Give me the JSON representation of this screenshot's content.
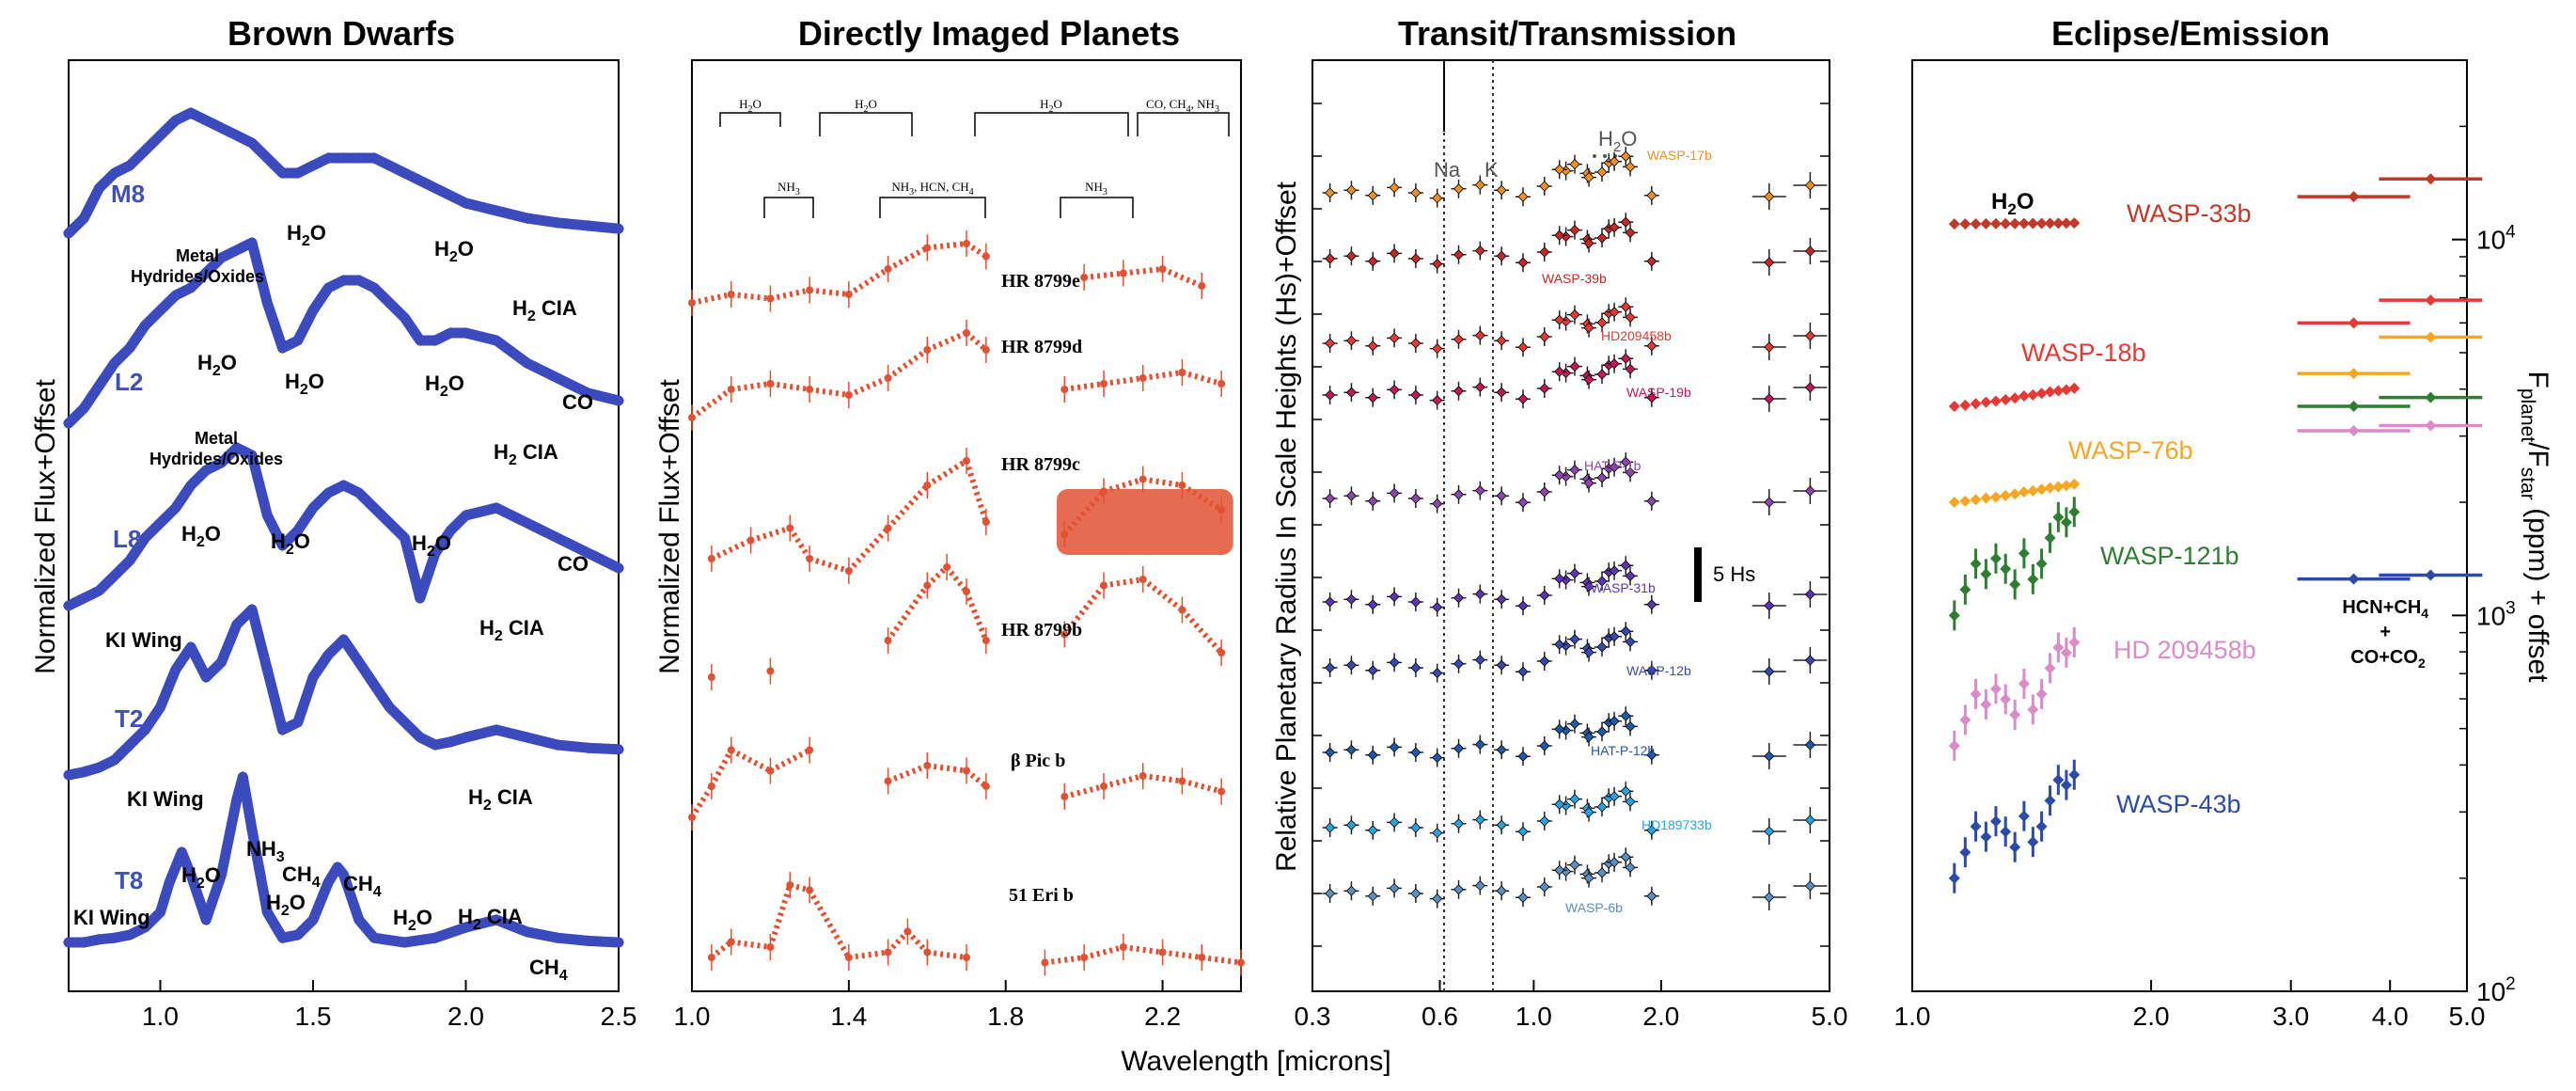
{
  "xlabel": "Wavelength [microns]",
  "chart_data": [
    {
      "type": "line",
      "title": "Brown Dwarfs",
      "xlabel": "",
      "ylabel": "Normalized Flux+Offset",
      "xlim": [
        0.7,
        2.5
      ],
      "xticks": [
        "1.0",
        "1.5",
        "2.0",
        "2.5"
      ],
      "color": "#3b4bbd",
      "series": [
        {
          "name": "M8",
          "offset": 4,
          "x": [
            0.7,
            0.75,
            0.8,
            0.85,
            0.9,
            0.95,
            1.0,
            1.05,
            1.1,
            1.15,
            1.2,
            1.25,
            1.3,
            1.35,
            1.4,
            1.45,
            1.5,
            1.55,
            1.6,
            1.65,
            1.7,
            1.75,
            1.8,
            1.85,
            1.9,
            1.95,
            2.0,
            2.1,
            2.2,
            2.3,
            2.4,
            2.5
          ],
          "y": [
            0.45,
            0.55,
            0.75,
            0.85,
            0.9,
            1.0,
            1.1,
            1.2,
            1.25,
            1.2,
            1.15,
            1.1,
            1.05,
            0.95,
            0.85,
            0.85,
            0.9,
            0.95,
            0.95,
            0.95,
            0.95,
            0.9,
            0.85,
            0.8,
            0.75,
            0.7,
            0.65,
            0.6,
            0.55,
            0.52,
            0.5,
            0.48
          ]
        },
        {
          "name": "L2",
          "offset": 3,
          "x": [
            0.7,
            0.75,
            0.8,
            0.85,
            0.9,
            0.95,
            1.0,
            1.05,
            1.1,
            1.15,
            1.2,
            1.25,
            1.3,
            1.35,
            1.4,
            1.45,
            1.5,
            1.55,
            1.6,
            1.65,
            1.7,
            1.75,
            1.8,
            1.85,
            1.9,
            1.95,
            2.0,
            2.1,
            2.2,
            2.3,
            2.4,
            2.5
          ],
          "y": [
            0.2,
            0.3,
            0.45,
            0.6,
            0.7,
            0.85,
            0.95,
            1.05,
            1.1,
            1.2,
            1.3,
            1.35,
            1.4,
            1.0,
            0.7,
            0.75,
            0.95,
            1.1,
            1.15,
            1.15,
            1.1,
            1.0,
            0.9,
            0.75,
            0.75,
            0.8,
            0.8,
            0.75,
            0.6,
            0.5,
            0.4,
            0.35
          ]
        },
        {
          "name": "L8",
          "offset": 2,
          "x": [
            0.7,
            0.75,
            0.8,
            0.85,
            0.9,
            0.95,
            1.0,
            1.05,
            1.1,
            1.15,
            1.2,
            1.25,
            1.3,
            1.35,
            1.4,
            1.45,
            1.5,
            1.55,
            1.6,
            1.65,
            1.7,
            1.75,
            1.8,
            1.85,
            1.9,
            1.95,
            2.0,
            2.1,
            2.2,
            2.3,
            2.4,
            2.5
          ],
          "y": [
            0.1,
            0.15,
            0.2,
            0.3,
            0.4,
            0.55,
            0.65,
            0.75,
            0.9,
            1.0,
            1.05,
            1.15,
            1.1,
            0.7,
            0.5,
            0.6,
            0.75,
            0.85,
            0.9,
            0.85,
            0.75,
            0.65,
            0.55,
            0.15,
            0.45,
            0.6,
            0.7,
            0.75,
            0.65,
            0.55,
            0.45,
            0.35
          ]
        },
        {
          "name": "T2",
          "offset": 1,
          "x": [
            0.7,
            0.75,
            0.8,
            0.85,
            0.9,
            0.95,
            1.0,
            1.05,
            1.1,
            1.15,
            1.2,
            1.25,
            1.3,
            1.35,
            1.4,
            1.45,
            1.5,
            1.55,
            1.6,
            1.65,
            1.7,
            1.75,
            1.8,
            1.85,
            1.9,
            1.95,
            2.0,
            2.1,
            2.2,
            2.3,
            2.4,
            2.5
          ],
          "y": [
            0.1,
            0.12,
            0.15,
            0.2,
            0.3,
            0.4,
            0.55,
            0.8,
            0.95,
            0.75,
            0.85,
            1.1,
            1.2,
            0.8,
            0.4,
            0.45,
            0.75,
            0.9,
            1.0,
            0.85,
            0.7,
            0.55,
            0.45,
            0.35,
            0.3,
            0.32,
            0.35,
            0.4,
            0.35,
            0.3,
            0.28,
            0.27
          ]
        },
        {
          "name": "T8",
          "offset": 0,
          "x": [
            0.7,
            0.75,
            0.8,
            0.85,
            0.9,
            0.95,
            1.0,
            1.03,
            1.07,
            1.1,
            1.15,
            1.2,
            1.25,
            1.27,
            1.3,
            1.35,
            1.4,
            1.45,
            1.5,
            1.55,
            1.58,
            1.6,
            1.65,
            1.7,
            1.8,
            1.9,
            2.0,
            2.1,
            2.2,
            2.3,
            2.4,
            2.5
          ],
          "y": [
            0.05,
            0.05,
            0.07,
            0.08,
            0.1,
            0.15,
            0.25,
            0.45,
            0.65,
            0.5,
            0.2,
            0.5,
            1.0,
            1.15,
            0.8,
            0.25,
            0.08,
            0.1,
            0.2,
            0.45,
            0.55,
            0.5,
            0.2,
            0.08,
            0.05,
            0.08,
            0.15,
            0.2,
            0.12,
            0.08,
            0.06,
            0.05
          ]
        }
      ],
      "annotations": [
        "Metal Hydrides/Oxides",
        "H2O",
        "H2O",
        "H2 CIA",
        "H2O",
        "H2O",
        "H2O",
        "Metal Hydrides/Oxides",
        "CO",
        "H2 CIA",
        "H2O",
        "H2O",
        "H2O",
        "KI Wing",
        "CO",
        "H2 CIA",
        "KI Wing",
        "H2 CIA",
        "NH3",
        "H2O",
        "CH4",
        "H2O",
        "CH4",
        "H2O",
        "H2 CIA",
        "KI Wing",
        "CH4"
      ]
    },
    {
      "type": "scatter",
      "title": "Directly Imaged Planets",
      "ylabel": "Normalized Flux+Offset",
      "xlim": [
        1.0,
        2.4
      ],
      "xticks": [
        "1.0",
        "1.4",
        "1.8",
        "2.2"
      ],
      "color": "#e05233",
      "band_labels_top": [
        "H2O",
        "H2O",
        "H2O",
        "CO, CH4, NH3"
      ],
      "band_labels_bottom": [
        "NH3",
        "NH3, HCN, CH4",
        "NH3"
      ],
      "series": [
        {
          "name": "HR 8799e",
          "x": [
            1.0,
            1.1,
            1.2,
            1.3,
            1.4,
            1.5,
            1.6,
            1.7,
            1.75,
            2.0,
            2.1,
            2.2,
            2.3
          ],
          "y": [
            0.2,
            0.3,
            0.25,
            0.35,
            0.3,
            0.6,
            0.85,
            0.9,
            0.75,
            0.5,
            0.55,
            0.6,
            0.4
          ]
        },
        {
          "name": "HR 8799d",
          "x": [
            1.0,
            1.1,
            1.2,
            1.3,
            1.4,
            1.5,
            1.6,
            1.7,
            1.75,
            1.95,
            2.05,
            2.15,
            2.25,
            2.35
          ],
          "y": [
            0.3,
            0.55,
            0.6,
            0.55,
            0.5,
            0.65,
            0.9,
            1.05,
            0.9,
            0.55,
            0.6,
            0.65,
            0.7,
            0.6
          ]
        },
        {
          "name": "HR 8799c",
          "x": [
            1.05,
            1.15,
            1.25,
            1.3,
            1.4,
            1.5,
            1.6,
            1.7,
            1.75,
            1.95,
            2.05,
            2.15,
            2.25,
            2.35
          ],
          "y": [
            0.2,
            0.35,
            0.45,
            0.2,
            0.1,
            0.45,
            0.8,
            1.0,
            0.5,
            0.4,
            0.75,
            0.85,
            0.8,
            0.6
          ]
        },
        {
          "name": "HR 8799b",
          "x": [
            1.05,
            1.2,
            1.5,
            1.6,
            1.65,
            1.7,
            1.75,
            1.95,
            2.05,
            2.15,
            2.25,
            2.35
          ],
          "y": [
            0.0,
            0.05,
            0.3,
            0.75,
            0.9,
            0.7,
            0.3,
            0.35,
            0.75,
            0.8,
            0.55,
            0.2
          ]
        },
        {
          "name": "β Pic b",
          "x": [
            1.0,
            1.05,
            1.1,
            1.2,
            1.3,
            1.5,
            1.6,
            1.7,
            1.75,
            1.95,
            2.05,
            2.15,
            2.25,
            2.35
          ],
          "y": [
            0.1,
            0.4,
            0.75,
            0.55,
            0.75,
            0.45,
            0.6,
            0.55,
            0.4,
            0.3,
            0.4,
            0.5,
            0.45,
            0.35
          ]
        },
        {
          "name": "51 Eri b",
          "x": [
            1.05,
            1.1,
            1.2,
            1.25,
            1.3,
            1.4,
            1.5,
            1.55,
            1.6,
            1.7,
            1.9,
            2.0,
            2.1,
            2.2,
            2.3,
            2.4
          ],
          "y": [
            0.2,
            0.35,
            0.3,
            0.9,
            0.85,
            0.2,
            0.25,
            0.45,
            0.25,
            0.2,
            0.15,
            0.2,
            0.3,
            0.25,
            0.2,
            0.15
          ]
        }
      ]
    },
    {
      "type": "scatter",
      "title": "Transit/Transmission",
      "ylabel": "Relative Planetary Radius In Scale Heights (Hs)+Offset",
      "xscale": "log",
      "xlim": [
        0.3,
        5.0
      ],
      "xticks": [
        "0.3",
        "0.6",
        "1.0",
        "2.0",
        "5.0"
      ],
      "vlines": [
        "Na",
        "K"
      ],
      "molecule_label": "H2O",
      "scale_bar_label": "5 Hs",
      "series": [
        {
          "name": "WASP-17b",
          "color": "#f28f24"
        },
        {
          "name": "WASP-39b",
          "color": "#c62828"
        },
        {
          "name": "HD209458b",
          "color": "#e53935"
        },
        {
          "name": "WASP-19b",
          "color": "#c2185b"
        },
        {
          "name": "HAT-P-1b",
          "color": "#8e44ad"
        },
        {
          "name": "WASP-31b",
          "color": "#5e35b1"
        },
        {
          "name": "WASP-12b",
          "color": "#3949ab"
        },
        {
          "name": "HAT-P-12b",
          "color": "#1e5aa8"
        },
        {
          "name": "HD189733b",
          "color": "#29a3e0"
        },
        {
          "name": "WASP-6b",
          "color": "#5a8fc0"
        }
      ]
    },
    {
      "type": "scatter",
      "title": "Eclipse/Emission",
      "ylabel": "Fplanet/Fstar (ppm) + offset",
      "xscale": "log",
      "yscale": "log",
      "xlim": [
        1.0,
        5.0
      ],
      "xticks": [
        "1.0",
        "2.0",
        "3.0",
        "4.0",
        "5.0"
      ],
      "yticks": [
        "10^2",
        "10^3",
        "10^4"
      ],
      "molecule_label": "H2O",
      "right_note": [
        "HCN+CH4",
        "+",
        "CO+CO2"
      ],
      "series": [
        {
          "name": "WASP-33b",
          "color": "#c0392b",
          "y_level": 11000,
          "ir": [
            13000,
            14500
          ]
        },
        {
          "name": "WASP-18b",
          "color": "#e53935",
          "y_level": 3600,
          "ir": [
            6000,
            6900
          ]
        },
        {
          "name": "WASP-76b",
          "color": "#f5a623",
          "y_level": 2000,
          "ir": [
            4400,
            5500
          ]
        },
        {
          "name": "WASP-121b",
          "color": "#2e7d32",
          "y_level": 1000,
          "ir": [
            3600,
            3800
          ]
        },
        {
          "name": "HD 209458b",
          "color": "#d98cc8",
          "y_level": 450,
          "ir": [
            3100,
            3200
          ]
        },
        {
          "name": "WASP-43b",
          "color": "#2e4aa8",
          "y_level": 200,
          "ir": [
            1250,
            1280
          ]
        }
      ]
    }
  ]
}
